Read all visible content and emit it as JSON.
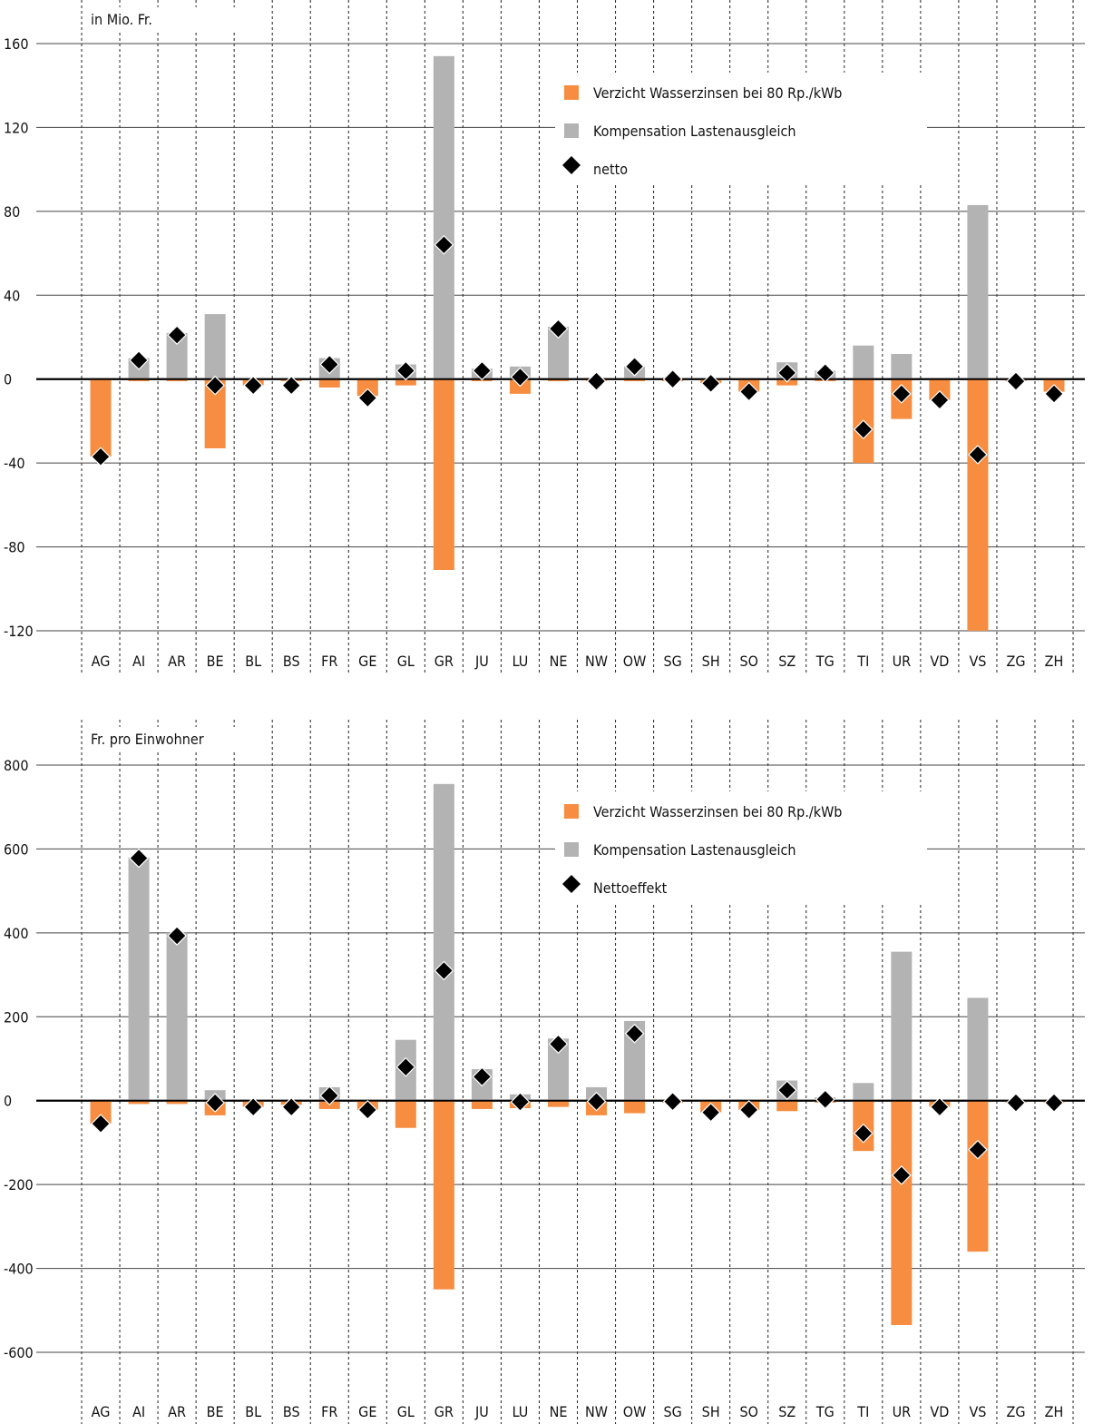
{
  "colors": {
    "verzicht": "#F68D40",
    "kompensation": "#B3B3B3",
    "netto": "#000000",
    "grid": "#222222"
  },
  "chart_data": [
    {
      "type": "bar",
      "unit_label": "in Mio. Fr.",
      "categories": [
        "AG",
        "AI",
        "AR",
        "BE",
        "BL",
        "BS",
        "FR",
        "GE",
        "GL",
        "GR",
        "JU",
        "LU",
        "NE",
        "NW",
        "OW",
        "SG",
        "SH",
        "SO",
        "SZ",
        "TG",
        "TI",
        "UR",
        "VD",
        "VS",
        "ZG",
        "ZH"
      ],
      "ylim": [
        -120,
        160
      ],
      "yticks": [
        "160",
        "120",
        "80",
        "40",
        "0",
        "-40",
        "-80",
        "-120"
      ],
      "legend": [
        "Verzicht Wasserzinsen bei 80 Rp./kWb",
        "Kompensation Lastenausgleich",
        "netto"
      ],
      "series": [
        {
          "name": "Verzicht Wasserzinsen bei 80 Rp./kWb",
          "values": [
            -37,
            -1,
            -1,
            -33,
            -3,
            -1,
            -4,
            -8,
            -3,
            -91,
            -1,
            -7,
            -1,
            -1,
            -1,
            -1,
            -2,
            -6,
            -3,
            -1,
            -40,
            -19,
            -10,
            -120,
            -1,
            -6
          ]
        },
        {
          "name": "Kompensation Lastenausgleich",
          "values": [
            0,
            10,
            22,
            31,
            0,
            0,
            10,
            0,
            7,
            154,
            5,
            6,
            25,
            0,
            6,
            0,
            0,
            0,
            8,
            4,
            16,
            12,
            0,
            83,
            0,
            0
          ]
        },
        {
          "name": "netto",
          "values": [
            -37,
            9,
            21,
            -3,
            -3,
            -3,
            7,
            -9,
            4,
            64,
            4,
            1,
            24,
            -1,
            6,
            0,
            -2,
            -6,
            3,
            3,
            -24,
            -7,
            -10,
            -36,
            -1,
            -7
          ]
        }
      ]
    },
    {
      "type": "bar",
      "unit_label": "Fr. pro Einwohner",
      "categories": [
        "AG",
        "AI",
        "AR",
        "BE",
        "BL",
        "BS",
        "FR",
        "GE",
        "GL",
        "GR",
        "JU",
        "LU",
        "NE",
        "NW",
        "OW",
        "SG",
        "SH",
        "SO",
        "SZ",
        "TG",
        "TI",
        "UR",
        "VD",
        "VS",
        "ZG",
        "ZH"
      ],
      "ylim": [
        -600,
        800
      ],
      "yticks": [
        "800",
        "600",
        "400",
        "200",
        "0",
        "-200",
        "-400",
        "-600"
      ],
      "legend": [
        "Verzicht Wasserzinsen bei 80 Rp./kWb",
        "Kompensation Lastenausgleich",
        "Nettoeffekt"
      ],
      "series": [
        {
          "name": "Verzicht Wasserzinsen bei 80 Rp./kWb",
          "values": [
            -55,
            -8,
            -8,
            -35,
            -15,
            -10,
            -20,
            -22,
            -65,
            -450,
            -20,
            -18,
            -15,
            -35,
            -30,
            -5,
            -28,
            -22,
            -25,
            -5,
            -120,
            -535,
            -15,
            -360,
            -5,
            -5
          ]
        },
        {
          "name": "Kompensation Lastenausgleich",
          "values": [
            0,
            580,
            400,
            25,
            0,
            0,
            32,
            0,
            145,
            755,
            75,
            15,
            148,
            32,
            190,
            0,
            0,
            0,
            48,
            8,
            42,
            355,
            0,
            245,
            0,
            0
          ]
        },
        {
          "name": "Nettoeffekt",
          "values": [
            -55,
            578,
            393,
            -5,
            -15,
            -15,
            12,
            -22,
            80,
            310,
            57,
            -3,
            135,
            -2,
            160,
            -2,
            -28,
            -22,
            25,
            3,
            -78,
            -178,
            -15,
            -117,
            -5,
            -5
          ]
        }
      ]
    }
  ]
}
